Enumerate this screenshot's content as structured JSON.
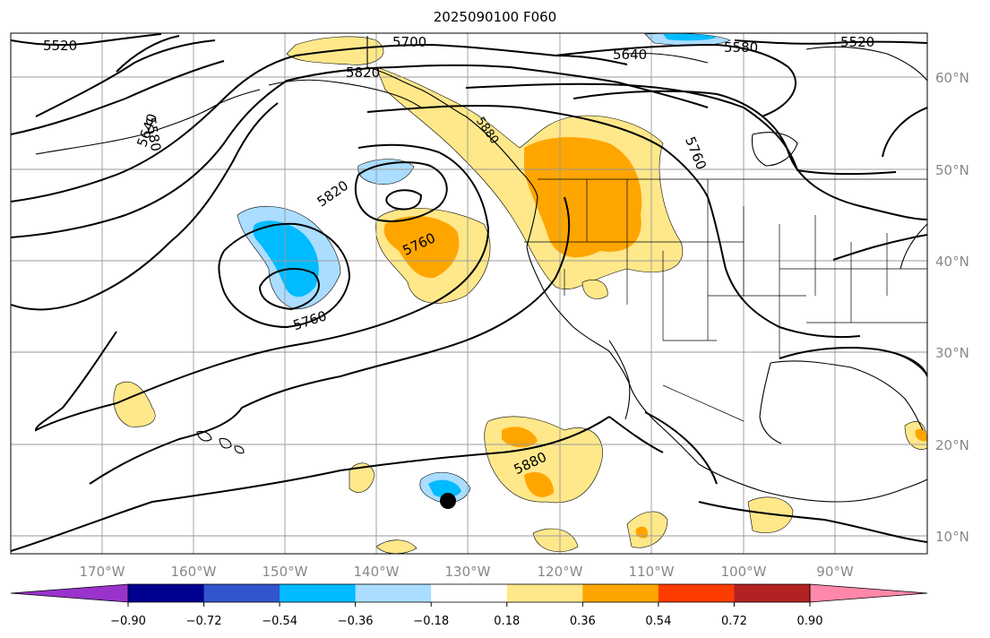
{
  "title": "2025090100 F060",
  "map": {
    "lat_labels": [
      "60°N",
      "50°N",
      "40°N",
      "30°N",
      "20°N",
      "10°N"
    ],
    "lon_labels": [
      "170°W",
      "160°W",
      "150°W",
      "140°W",
      "130°W",
      "120°W",
      "110°W",
      "100°W",
      "90°W"
    ],
    "contour_labels": [
      "5520",
      "5700",
      "5820",
      "5640",
      "5580",
      "5520",
      "5580",
      "5640",
      "5760",
      "5820",
      "5760",
      "5760",
      "5880",
      "5880"
    ],
    "marker": "black-dot"
  },
  "colorbar": {
    "labels": [
      "−0.90",
      "−0.72",
      "−0.54",
      "−0.36",
      "−0.18",
      "0.18",
      "0.36",
      "0.54",
      "0.72",
      "0.90"
    ],
    "colors": {
      "under": "#9933cc",
      "bins": [
        "#000090",
        "#3355cc",
        "#00bbff",
        "#aaddff",
        "#ffffff",
        "#ffe88a",
        "#ffa500",
        "#ff3c00",
        "#b22222"
      ],
      "over": "#ff88aa"
    }
  }
}
